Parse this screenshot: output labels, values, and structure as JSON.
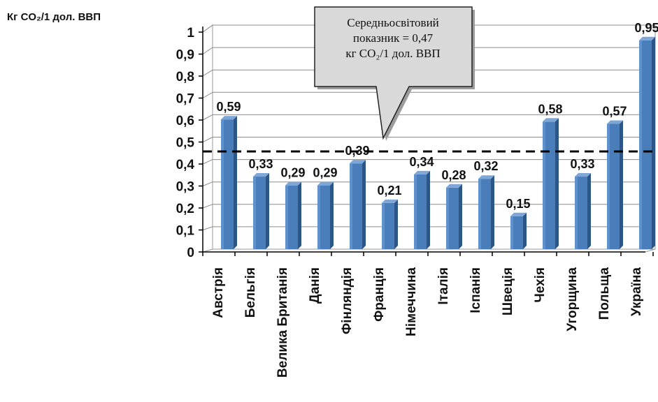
{
  "chart_data": {
    "type": "bar",
    "ylabel": "Кг CO₂/1 дол. ВВП",
    "ylim": [
      0,
      1
    ],
    "yticks": [
      "0",
      "0,1",
      "0,2",
      "0,3",
      "0,4",
      "0,5",
      "0,6",
      "0,7",
      "0,8",
      "0,9",
      "1"
    ],
    "categories": [
      "Австрія",
      "Бельгія",
      "Велика Британія",
      "Данія",
      "Фінляндія",
      "Франція",
      "Німеччина",
      "Італія",
      "Іспанія",
      "Швеція",
      "Чехія",
      "Угорщина",
      "Польща",
      "Україна"
    ],
    "values": [
      0.59,
      0.33,
      0.29,
      0.29,
      0.39,
      0.21,
      0.34,
      0.28,
      0.32,
      0.15,
      0.58,
      0.33,
      0.57,
      0.95
    ],
    "data_labels": [
      "0,59",
      "0,33",
      "0,29",
      "0,29",
      "0,39",
      "0,21",
      "0,34",
      "0,28",
      "0,32",
      "0,15",
      "0,58",
      "0,33",
      "0,57",
      "0,95"
    ],
    "reference_line": {
      "value": 0.47,
      "style": "dashed"
    },
    "annotation": {
      "line1": "Середньосвітовий",
      "line2": "показник  = 0,47",
      "line3": "кг CO₂/1 дол. ВВП"
    },
    "grid": true,
    "bar_color": "#4a7ebb"
  }
}
